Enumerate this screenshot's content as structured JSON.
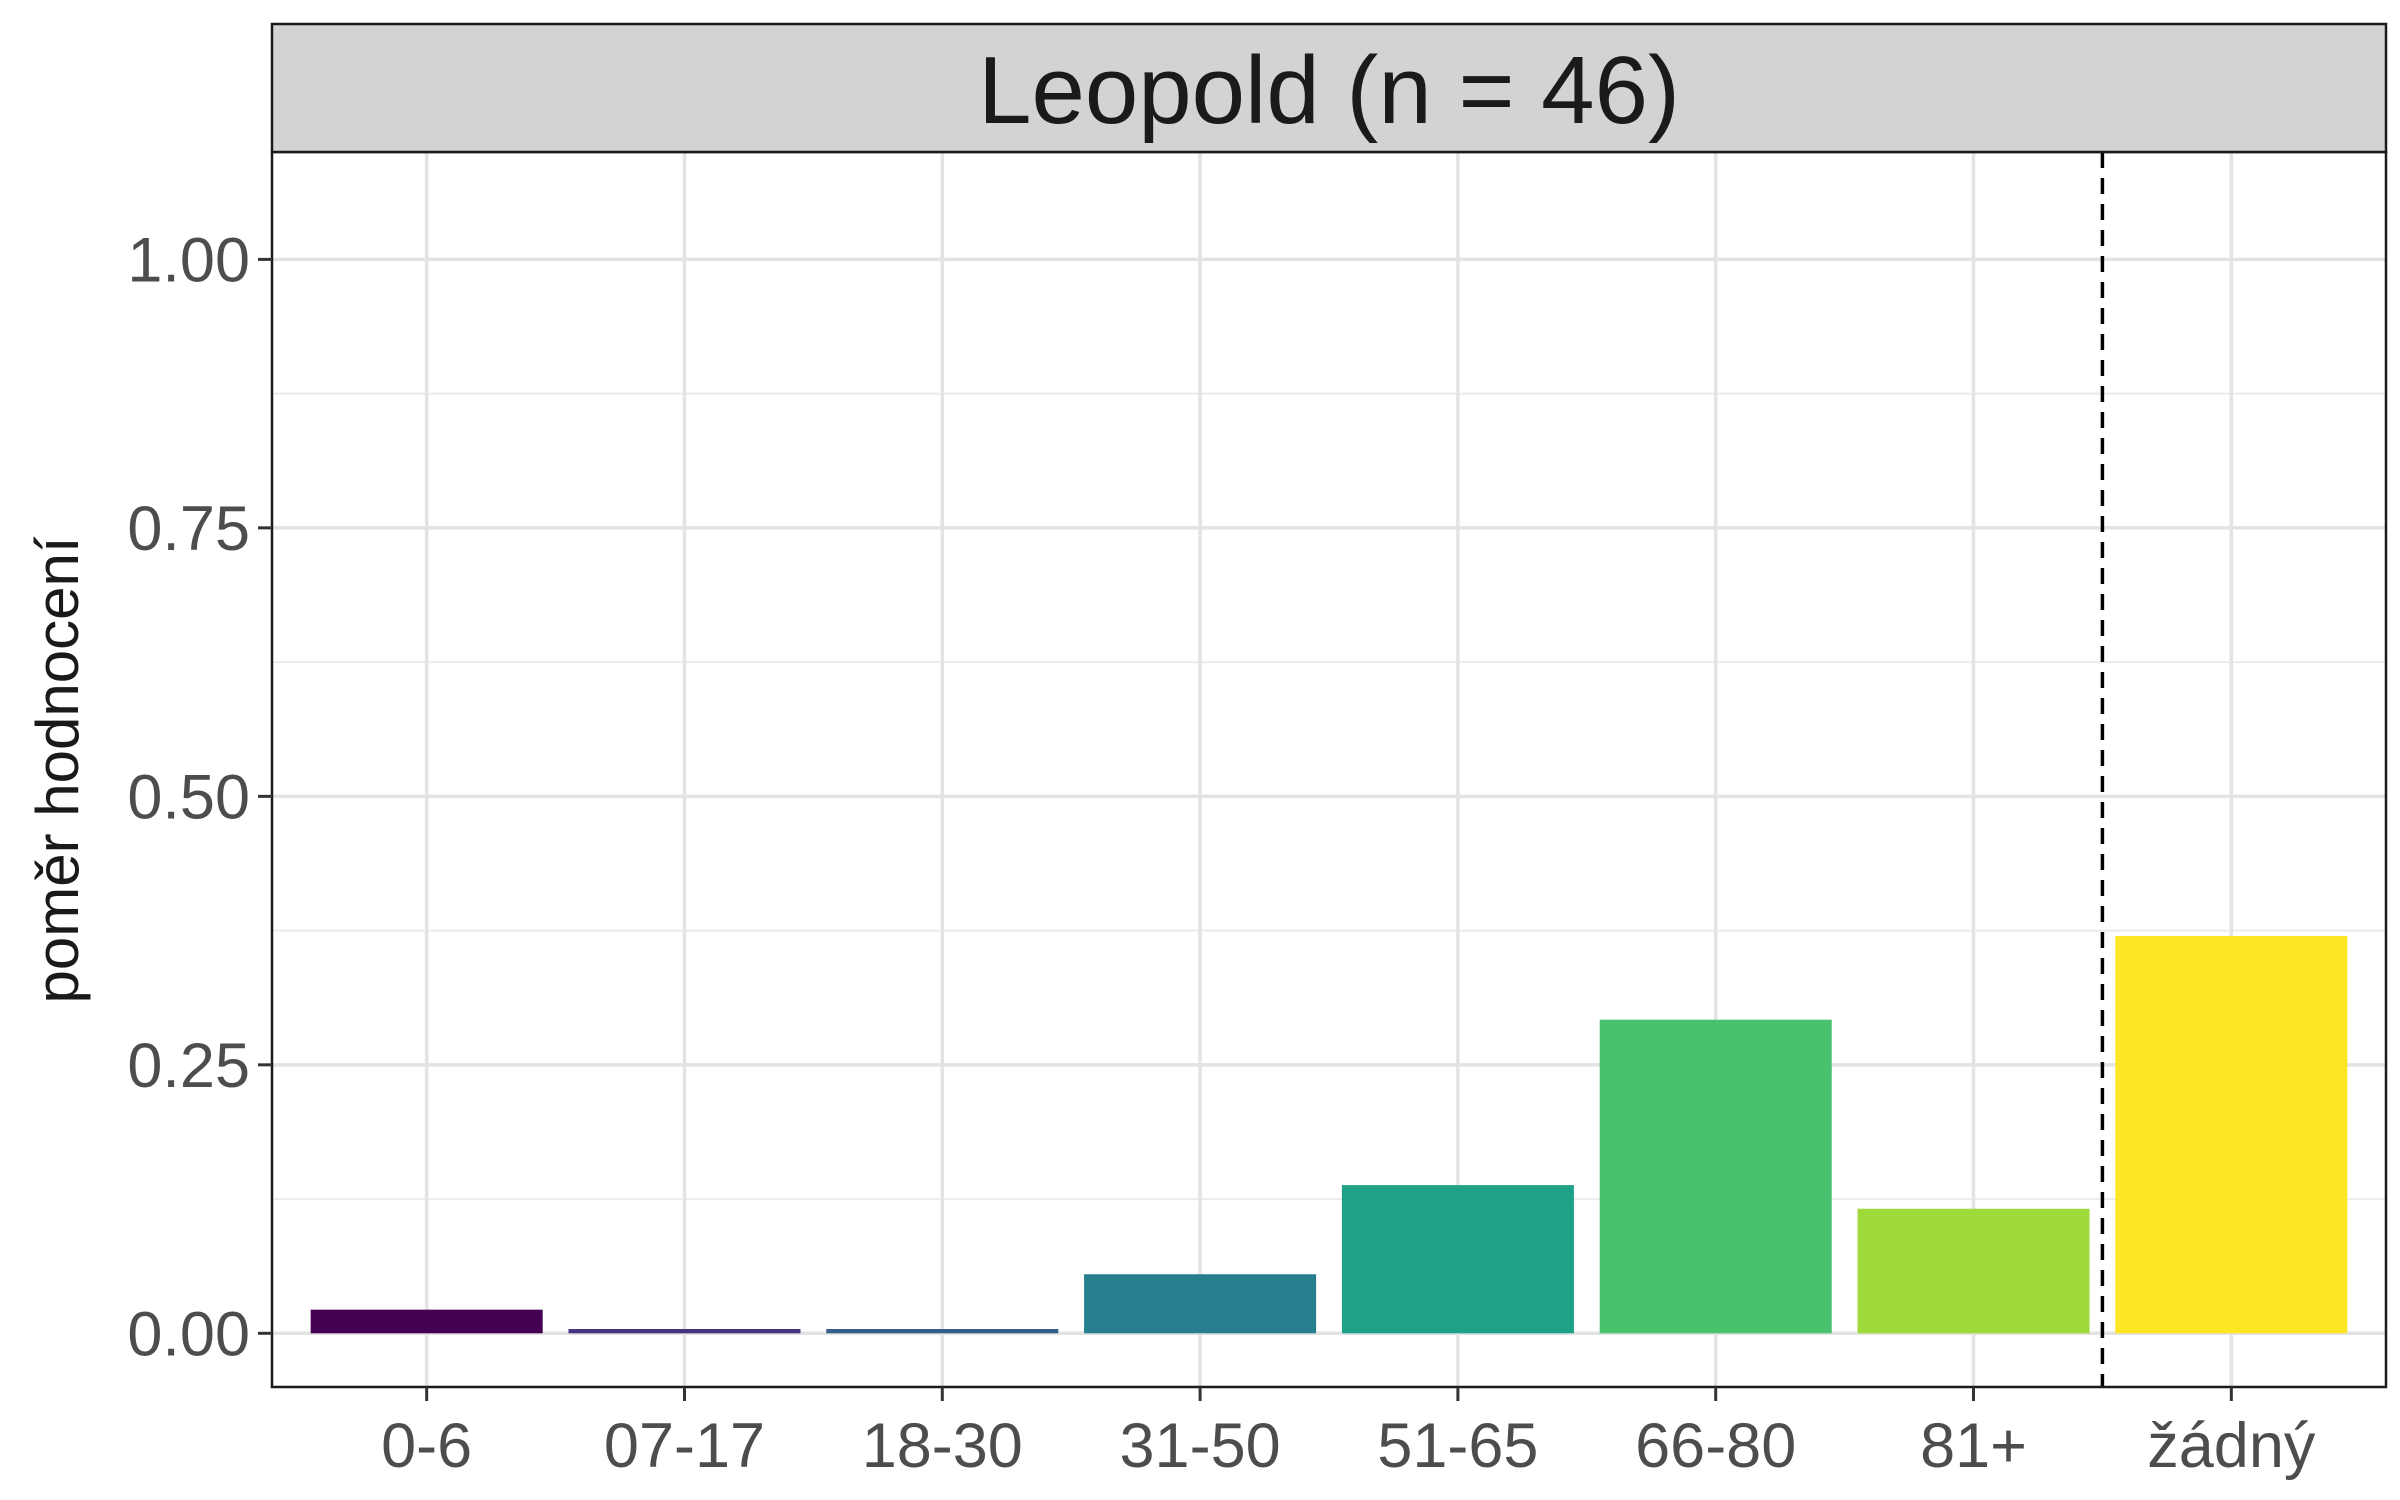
{
  "chart_data": {
    "type": "bar",
    "title": "Leopold (n = 46)",
    "xlabel": "",
    "ylabel": "poměr hodnocení",
    "categories": [
      "0-6",
      "07-17",
      "18-30",
      "31-50",
      "51-65",
      "66-80",
      "81+",
      "žádný"
    ],
    "values": [
      0.022,
      0.004,
      0.004,
      0.055,
      0.138,
      0.292,
      0.116,
      0.37
    ],
    "colors": [
      "#440154",
      "#46337e",
      "#365c8d",
      "#277f8e",
      "#1fa187",
      "#4ac16d",
      "#9fda3a",
      "#fde725"
    ],
    "ylim": [
      -0.05,
      1.1
    ],
    "yticks": [
      0.0,
      0.25,
      0.5,
      0.75,
      1.0
    ],
    "ytick_labels": [
      "0.00",
      "0.25",
      "0.50",
      "0.75",
      "1.00"
    ],
    "grid": true,
    "reference_line": {
      "between": [
        "81+",
        "žádný"
      ],
      "style": "dashed",
      "color": "#000000"
    },
    "strip_color": "#d9d9d9"
  }
}
